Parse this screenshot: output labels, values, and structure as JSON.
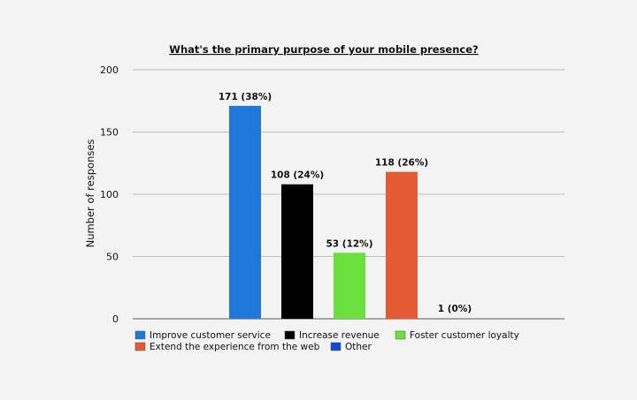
{
  "chart_data": {
    "type": "bar",
    "title": "What's the primary purpose of your mobile presence?",
    "xlabel": "",
    "ylabel": "Number of responses",
    "ylim": [
      0,
      200
    ],
    "yticks": [
      0,
      50,
      100,
      150,
      200
    ],
    "grid": true,
    "legend_position": "bottom",
    "categories": [
      "Improve customer service",
      "Increase revenue",
      "Foster customer loyalty",
      "Extend the experience from the web",
      "Other"
    ],
    "values": [
      171,
      108,
      53,
      118,
      1
    ],
    "data_labels": [
      "171 (38%)",
      "108 (24%)",
      "53 (12%)",
      "118 (26%)",
      "1 (0%)"
    ],
    "colors": [
      "#1f78d9",
      "#000000",
      "#6be03c",
      "#e45a32",
      "#1148d8"
    ]
  }
}
